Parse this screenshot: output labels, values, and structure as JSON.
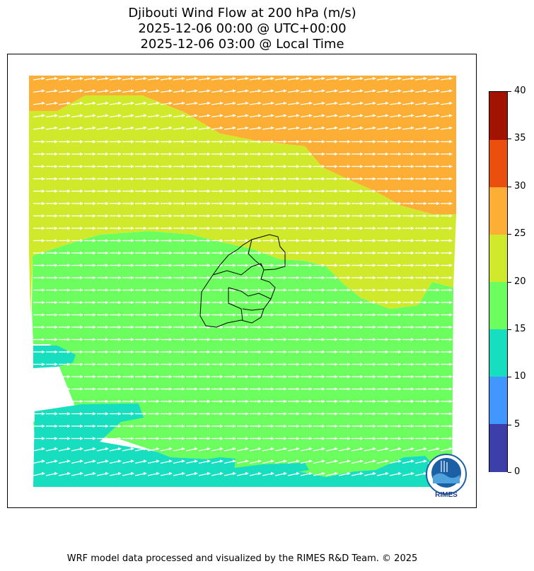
{
  "title": {
    "line1": "Djibouti Wind Flow at 200 hPa (m/s)",
    "line2": "2025-12-06 00:00 @ UTC+00:00",
    "line3": "2025-12-06 03:00 @ Local Time"
  },
  "colorbar": {
    "ticks": [
      "0",
      "5",
      "10",
      "15",
      "20",
      "25",
      "30",
      "35",
      "40"
    ],
    "colors": [
      "#3d3fa8",
      "#4196ff",
      "#18dec0",
      "#6cfd5f",
      "#d0ea2b",
      "#fdae34",
      "#ea4f0d",
      "#a11201"
    ]
  },
  "zone_colors": {
    "teal": "#18dec0",
    "green": "#6cfd5f",
    "yellowgreen": "#d0ea2b",
    "orange": "#fdae34",
    "arrows": "#ffffff",
    "border": "#000000"
  },
  "logo": {
    "text": "RIMES"
  },
  "footer": "WRF model data processed and visualized by the RIMES R&D Team. © 2025"
}
